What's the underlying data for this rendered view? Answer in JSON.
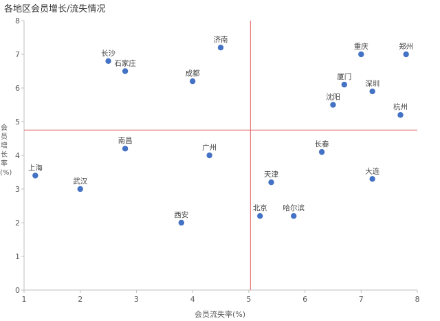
{
  "chart_data": {
    "type": "scatter",
    "title": "各地区会员增长/流失情况",
    "xlabel": "会员流失率(%)",
    "ylabel": "会员增长率(%)",
    "xlim": [
      1,
      8
    ],
    "ylim": [
      0,
      8
    ],
    "xticks": [
      "1",
      "2",
      "3",
      "4",
      "5",
      "6",
      "7",
      "8"
    ],
    "yticks": [
      "0",
      "1",
      "2",
      "3",
      "4",
      "5",
      "6",
      "7",
      "8"
    ],
    "grid": false,
    "reference_lines": {
      "x": 5.03,
      "y": 4.75
    },
    "colors": {
      "point": "#4472c4",
      "reference_line": "#e06666",
      "axis": "#bfbfbf"
    },
    "points": [
      {
        "label": "上海",
        "x": 1.2,
        "y": 3.4
      },
      {
        "label": "武汉",
        "x": 2.0,
        "y": 3.0
      },
      {
        "label": "长沙",
        "x": 2.5,
        "y": 6.8
      },
      {
        "label": "石家庄",
        "x": 2.8,
        "y": 6.5
      },
      {
        "label": "南昌",
        "x": 2.8,
        "y": 4.2
      },
      {
        "label": "西安",
        "x": 3.8,
        "y": 2.0
      },
      {
        "label": "成都",
        "x": 4.0,
        "y": 6.2
      },
      {
        "label": "广州",
        "x": 4.3,
        "y": 4.0
      },
      {
        "label": "济南",
        "x": 4.5,
        "y": 7.2
      },
      {
        "label": "北京",
        "x": 5.2,
        "y": 2.2
      },
      {
        "label": "天津",
        "x": 5.4,
        "y": 3.2
      },
      {
        "label": "哈尔滨",
        "x": 5.8,
        "y": 2.2
      },
      {
        "label": "长春",
        "x": 6.3,
        "y": 4.1
      },
      {
        "label": "沈阳",
        "x": 6.5,
        "y": 5.5
      },
      {
        "label": "厦门",
        "x": 6.7,
        "y": 6.1
      },
      {
        "label": "重庆",
        "x": 7.0,
        "y": 7.0
      },
      {
        "label": "深圳",
        "x": 7.2,
        "y": 5.9
      },
      {
        "label": "大连",
        "x": 7.2,
        "y": 3.3
      },
      {
        "label": "杭州",
        "x": 7.7,
        "y": 5.2
      },
      {
        "label": "郑州",
        "x": 7.8,
        "y": 7.0
      }
    ]
  }
}
